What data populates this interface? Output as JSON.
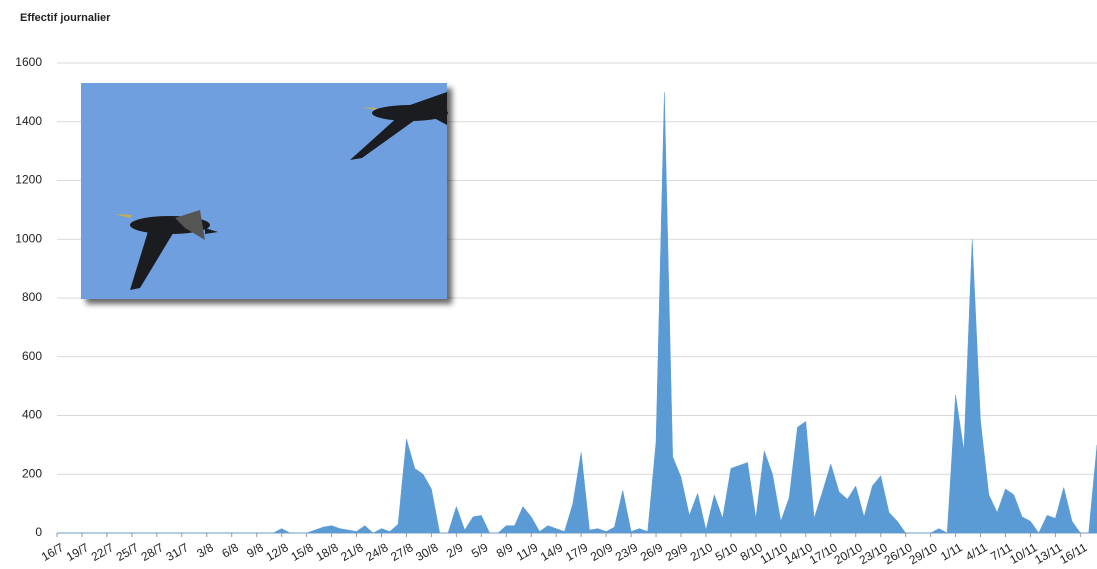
{
  "chart_data": {
    "type": "area",
    "title": "Effectif journalier",
    "color": "#5b9bd5",
    "grid": true,
    "ylim": [
      0,
      1600
    ],
    "yticks": [
      0,
      200,
      400,
      600,
      800,
      1000,
      1200,
      1400,
      1600
    ],
    "categories": [
      "16/7",
      null,
      null,
      "19/7",
      null,
      null,
      "22/7",
      null,
      null,
      "25/7",
      null,
      null,
      "28/7",
      null,
      null,
      "31/7",
      null,
      null,
      "3/8",
      null,
      null,
      "6/8",
      null,
      null,
      "9/8",
      null,
      null,
      "12/8",
      null,
      null,
      "15/8",
      null,
      null,
      "18/8",
      null,
      null,
      "21/8",
      null,
      null,
      "24/8",
      null,
      null,
      "27/8",
      null,
      null,
      "30/8",
      null,
      null,
      "2/9",
      null,
      null,
      "5/9",
      null,
      null,
      "8/9",
      null,
      null,
      "11/9",
      null,
      null,
      "14/9",
      null,
      null,
      "17/9",
      null,
      null,
      "20/9",
      null,
      null,
      "23/9",
      null,
      null,
      "26/9",
      null,
      null,
      "29/9",
      null,
      null,
      "2/10",
      null,
      null,
      "5/10",
      null,
      null,
      "8/10",
      null,
      null,
      "11/10",
      null,
      null,
      "14/10",
      null,
      null,
      "17/10",
      null,
      null,
      "20/10",
      null,
      null,
      "23/10",
      null,
      null,
      "26/10",
      null,
      null,
      "29/10",
      null,
      null,
      "1/11",
      null,
      null,
      "4/11",
      null,
      null,
      "7/11",
      null,
      null,
      "10/11",
      null,
      null,
      "13/11",
      null,
      null,
      "16/11",
      null,
      null
    ],
    "values": [
      0,
      0,
      0,
      0,
      0,
      0,
      0,
      0,
      0,
      0,
      0,
      0,
      0,
      0,
      0,
      0,
      0,
      0,
      0,
      0,
      0,
      0,
      0,
      0,
      0,
      0,
      0,
      15,
      0,
      0,
      0,
      10,
      20,
      25,
      15,
      10,
      5,
      25,
      0,
      15,
      5,
      30,
      320,
      220,
      200,
      150,
      0,
      0,
      90,
      10,
      55,
      60,
      0,
      0,
      25,
      25,
      90,
      55,
      5,
      25,
      15,
      5,
      100,
      275,
      10,
      15,
      5,
      20,
      145,
      5,
      15,
      5,
      310,
      1500,
      260,
      190,
      60,
      135,
      10,
      130,
      50,
      220,
      230,
      240,
      50,
      280,
      200,
      40,
      120,
      360,
      380,
      50,
      140,
      235,
      140,
      115,
      160,
      55,
      160,
      195,
      70,
      40,
      0,
      0,
      0,
      0,
      15,
      0,
      470,
      280,
      1000,
      380,
      130,
      70,
      150,
      130,
      55,
      40,
      0,
      60,
      50,
      155,
      40,
      0,
      0,
      300
    ]
  }
}
